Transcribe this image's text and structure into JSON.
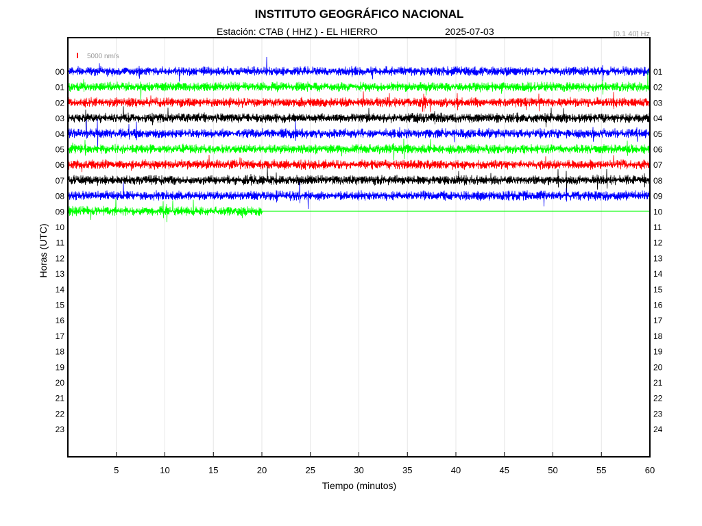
{
  "header": {
    "title": "INSTITUTO GEOGRÁFICO NACIONAL",
    "station_line": "Estación:  CTAB ( HHZ ) - EL HIERRO",
    "date": "2025-07-03",
    "filter": "[0.1 40] Hz"
  },
  "chart_data": {
    "type": "line",
    "title": "INSTITUTO GEOGRÁFICO NACIONAL",
    "xlabel": "Tiempo (minutos)",
    "ylabel": "Horas (UTC)",
    "xlim": [
      0,
      60
    ],
    "x_ticks": [
      "5",
      "10",
      "15",
      "20",
      "25",
      "30",
      "35",
      "40",
      "45",
      "50",
      "55",
      "60"
    ],
    "left_hour_labels": [
      "00",
      "01",
      "02",
      "03",
      "04",
      "05",
      "06",
      "07",
      "08",
      "09",
      "10",
      "11",
      "12",
      "13",
      "14",
      "15",
      "16",
      "17",
      "18",
      "19",
      "20",
      "21",
      "22",
      "23"
    ],
    "right_hour_labels": [
      "01",
      "02",
      "03",
      "04",
      "05",
      "06",
      "07",
      "08",
      "09",
      "10",
      "11",
      "12",
      "13",
      "14",
      "15",
      "16",
      "17",
      "18",
      "19",
      "20",
      "21",
      "22",
      "23",
      "24"
    ],
    "grid": "vertical-gridlines-every-5-min",
    "scale_bar": {
      "label": "5000 nm/s",
      "color": "#ff0000"
    },
    "series": [
      {
        "hour": "00",
        "color": "#0000ff",
        "minutes_recorded": 60
      },
      {
        "hour": "01",
        "color": "#00ff00",
        "minutes_recorded": 60
      },
      {
        "hour": "02",
        "color": "#ff0000",
        "minutes_recorded": 60
      },
      {
        "hour": "03",
        "color": "#000000",
        "minutes_recorded": 60
      },
      {
        "hour": "04",
        "color": "#0000ff",
        "minutes_recorded": 60
      },
      {
        "hour": "05",
        "color": "#00ff00",
        "minutes_recorded": 60
      },
      {
        "hour": "06",
        "color": "#ff0000",
        "minutes_recorded": 60
      },
      {
        "hour": "07",
        "color": "#000000",
        "minutes_recorded": 60
      },
      {
        "hour": "08",
        "color": "#0000ff",
        "minutes_recorded": 60
      },
      {
        "hour": "09",
        "color": "#00ff00",
        "minutes_recorded": 20
      }
    ]
  }
}
